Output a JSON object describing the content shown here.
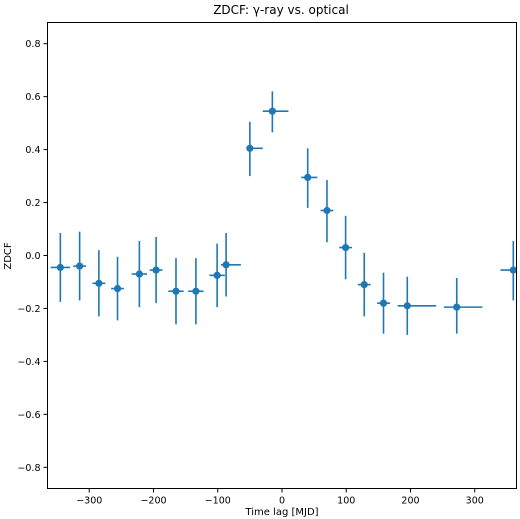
{
  "chart_data": {
    "type": "scatter",
    "title": "ZDCF: γ-ray vs. optical",
    "xlabel": "Time lag [MJD]",
    "ylabel": "ZDCF",
    "xlim": [
      -365,
      365
    ],
    "ylim": [
      -0.88,
      0.88
    ],
    "xticks": [
      -300,
      -200,
      -100,
      0,
      100,
      200,
      300
    ],
    "xtick_labels": [
      "−300",
      "−200",
      "−100",
      "0",
      "100",
      "200",
      "300"
    ],
    "yticks": [
      -0.8,
      -0.6,
      -0.4,
      -0.2,
      0.0,
      0.2,
      0.4,
      0.6,
      0.8
    ],
    "ytick_labels": [
      "−0.8",
      "−0.6",
      "−0.4",
      "−0.2",
      "0.0",
      "0.2",
      "0.4",
      "0.6",
      "0.8"
    ],
    "grid": false,
    "color": "#1f77b4",
    "points": [
      {
        "x": -345,
        "y": -0.045,
        "xerr": [
          15,
          15
        ],
        "yerr": [
          0.13,
          0.13
        ]
      },
      {
        "x": -315,
        "y": -0.04,
        "xerr": [
          10,
          10
        ],
        "yerr": [
          0.13,
          0.13
        ]
      },
      {
        "x": -285,
        "y": -0.105,
        "xerr": [
          10,
          10
        ],
        "yerr": [
          0.125,
          0.125
        ]
      },
      {
        "x": -256,
        "y": -0.125,
        "xerr": [
          10,
          10
        ],
        "yerr": [
          0.12,
          0.12
        ]
      },
      {
        "x": -222,
        "y": -0.07,
        "xerr": [
          12,
          12
        ],
        "yerr": [
          0.125,
          0.125
        ]
      },
      {
        "x": -196,
        "y": -0.055,
        "xerr": [
          10,
          10
        ],
        "yerr": [
          0.125,
          0.125
        ]
      },
      {
        "x": -165,
        "y": -0.135,
        "xerr": [
          12,
          12
        ],
        "yerr": [
          0.125,
          0.125
        ]
      },
      {
        "x": -134,
        "y": -0.135,
        "xerr": [
          12,
          12
        ],
        "yerr": [
          0.125,
          0.125
        ]
      },
      {
        "x": -101,
        "y": -0.075,
        "xerr": [
          12,
          12
        ],
        "yerr": [
          0.12,
          0.12
        ]
      },
      {
        "x": -87,
        "y": -0.035,
        "xerr": [
          8,
          23
        ],
        "yerr": [
          0.12,
          0.12
        ]
      },
      {
        "x": -50,
        "y": 0.405,
        "xerr": [
          5,
          20
        ],
        "yerr": [
          0.105,
          0.1
        ]
      },
      {
        "x": -15,
        "y": 0.545,
        "xerr": [
          15,
          25
        ],
        "yerr": [
          0.08,
          0.075
        ]
      },
      {
        "x": 40,
        "y": 0.295,
        "xerr": [
          10,
          15
        ],
        "yerr": [
          0.115,
          0.11
        ]
      },
      {
        "x": 70,
        "y": 0.17,
        "xerr": [
          10,
          10
        ],
        "yerr": [
          0.12,
          0.115
        ]
      },
      {
        "x": 99,
        "y": 0.03,
        "xerr": [
          10,
          10
        ],
        "yerr": [
          0.12,
          0.12
        ]
      },
      {
        "x": 128,
        "y": -0.11,
        "xerr": [
          10,
          10
        ],
        "yerr": [
          0.12,
          0.12
        ]
      },
      {
        "x": 158,
        "y": -0.18,
        "xerr": [
          10,
          10
        ],
        "yerr": [
          0.115,
          0.115
        ]
      },
      {
        "x": 195,
        "y": -0.19,
        "xerr": [
          15,
          45
        ],
        "yerr": [
          0.11,
          0.11
        ]
      },
      {
        "x": 272,
        "y": -0.195,
        "xerr": [
          20,
          40
        ],
        "yerr": [
          0.1,
          0.11
        ]
      },
      {
        "x": 360,
        "y": -0.055,
        "xerr": [
          20,
          5
        ],
        "yerr": [
          0.115,
          0.11
        ]
      }
    ]
  }
}
